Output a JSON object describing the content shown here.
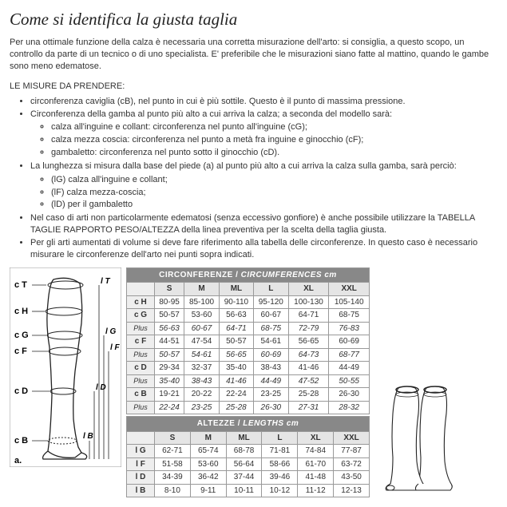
{
  "title": "Come si identifica la giusta taglia",
  "intro": "Per una ottimale funzione della calza è necessaria una corretta misurazione dell'arto: si consiglia, a questo scopo, un controllo da parte di un tecnico o di uno specialista. E' preferibile che le misurazioni siano fatte al mattino, quando le gambe sono meno edematose.",
  "subhead": "LE MISURE DA PRENDERE:",
  "bullets": {
    "b1": "circonferenza caviglia (cB), nel punto in cui è più sottile. Questo è il punto di massima pressione.",
    "b2": "Circonferenza della gamba al punto più alto a cui arriva la calza; a seconda del modello sarà:",
    "b2a": "calza all'inguine e collant: circonferenza nel punto all'inguine (cG);",
    "b2b": "calza mezza coscia: circonferenza nel punto a metà fra inguine e ginocchio (cF);",
    "b2c": "gambaletto: circonferenza nel punto sotto il ginocchio (cD).",
    "b3": "La lunghezza si misura dalla base del piede (a) al punto più alto a cui arriva la calza sulla gamba, sarà perciò:",
    "b3a": "(lG) calza all'inguine e collant;",
    "b3b": "(lF) calza mezza-coscia;",
    "b3c": "(lD) per il gambaletto",
    "b4": "Nel caso di arti non particolarmente edematosi (senza eccessivo gonfiore) è anche possibile utilizzare la TABELLA TAGLIE RAPPORTO PESO/ALTEZZA della linea preventiva per la scelta della taglia giusta.",
    "b5": "Per gli arti aumentati di volume si deve fare riferimento alla tabella delle circonferenze. In questo caso è necessario misurare le circonferenze dell'arto nei punti sopra indicati."
  },
  "diagram_labels": {
    "cT": "c T",
    "lT": "l T",
    "cH": "c H",
    "cG": "c G",
    "lG": "l G",
    "cF": "c F",
    "lF": "l F",
    "cD": "c D",
    "lD": "l D",
    "cB": "c B",
    "lB": "l B",
    "a": "a."
  },
  "circ_table": {
    "title_a": "CIRCONFERENZE",
    "title_b": "CIRCUMFERENCES cm",
    "sizes": [
      "S",
      "M",
      "ML",
      "L",
      "XL",
      "XXL"
    ],
    "rows": [
      {
        "label": "c H",
        "cells": [
          "80-95",
          "85-100",
          "90-110",
          "95-120",
          "100-130",
          "105-140"
        ]
      },
      {
        "label": "c G",
        "cells": [
          "50-57",
          "53-60",
          "56-63",
          "60-67",
          "64-71",
          "68-75"
        ]
      },
      {
        "label": "Plus",
        "cells": [
          "56-63",
          "60-67",
          "64-71",
          "68-75",
          "72-79",
          "76-83"
        ],
        "plus": true
      },
      {
        "label": "c F",
        "cells": [
          "44-51",
          "47-54",
          "50-57",
          "54-61",
          "56-65",
          "60-69"
        ]
      },
      {
        "label": "Plus",
        "cells": [
          "50-57",
          "54-61",
          "56-65",
          "60-69",
          "64-73",
          "68-77"
        ],
        "plus": true
      },
      {
        "label": "c D",
        "cells": [
          "29-34",
          "32-37",
          "35-40",
          "38-43",
          "41-46",
          "44-49"
        ]
      },
      {
        "label": "Plus",
        "cells": [
          "35-40",
          "38-43",
          "41-46",
          "44-49",
          "47-52",
          "50-55"
        ],
        "plus": true
      },
      {
        "label": "c B",
        "cells": [
          "19-21",
          "20-22",
          "22-24",
          "23-25",
          "25-28",
          "26-30"
        ]
      },
      {
        "label": "Plus",
        "cells": [
          "22-24",
          "23-25",
          "25-28",
          "26-30",
          "27-31",
          "28-32"
        ],
        "plus": true
      }
    ]
  },
  "len_table": {
    "title_a": "ALTEZZE",
    "title_b": "LENGTHS cm",
    "sizes": [
      "S",
      "M",
      "ML",
      "L",
      "XL",
      "XXL"
    ],
    "rows": [
      {
        "label": "l G",
        "cells": [
          "62-71",
          "65-74",
          "68-78",
          "71-81",
          "74-84",
          "77-87"
        ]
      },
      {
        "label": "l F",
        "cells": [
          "51-58",
          "53-60",
          "56-64",
          "58-66",
          "61-70",
          "63-72"
        ]
      },
      {
        "label": "l D",
        "cells": [
          "34-39",
          "36-42",
          "37-44",
          "39-46",
          "41-48",
          "43-50"
        ]
      },
      {
        "label": "l B",
        "cells": [
          "8-10",
          "9-11",
          "10-11",
          "10-12",
          "11-12",
          "12-13"
        ]
      }
    ]
  }
}
